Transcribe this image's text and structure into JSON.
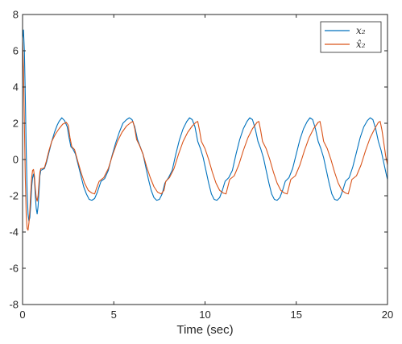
{
  "chart_data": {
    "type": "line",
    "title": "",
    "xlabel": "Time (sec)",
    "ylabel": "",
    "xlim": [
      0,
      20
    ],
    "ylim": [
      -8,
      8
    ],
    "x_ticks": [
      0,
      5,
      10,
      15,
      20
    ],
    "y_ticks": [
      -8,
      -6,
      -4,
      -2,
      0,
      2,
      4,
      6,
      8
    ],
    "x_tick_labels": [
      "0",
      "5",
      "10",
      "15",
      "20"
    ],
    "y_tick_labels": [
      "-8",
      "-6",
      "-4",
      "-2",
      "0",
      "2",
      "4",
      "6",
      "8"
    ],
    "grid": false,
    "legend_position": "top-right",
    "series": [
      {
        "name": "x₂",
        "color": "#0072BD",
        "points": [
          [
            0.0,
            6.7
          ],
          [
            0.05,
            7.15
          ],
          [
            0.1,
            6.0
          ],
          [
            0.15,
            3.5
          ],
          [
            0.2,
            0.5
          ],
          [
            0.25,
            -1.8
          ],
          [
            0.3,
            -3.0
          ],
          [
            0.35,
            -3.4
          ],
          [
            0.4,
            -3.2
          ],
          [
            0.45,
            -2.5
          ],
          [
            0.5,
            -1.5
          ],
          [
            0.55,
            -1.0
          ],
          [
            0.6,
            -0.8
          ],
          [
            0.65,
            -1.1
          ],
          [
            0.7,
            -2.0
          ],
          [
            0.75,
            -2.7
          ],
          [
            0.8,
            -3.0
          ],
          [
            0.85,
            -2.6
          ],
          [
            0.9,
            -1.8
          ],
          [
            0.95,
            -0.9
          ],
          [
            1.0,
            -0.6
          ],
          [
            1.1,
            -0.55
          ],
          [
            1.2,
            -0.5
          ],
          [
            1.3,
            -0.2
          ],
          [
            1.4,
            0.2
          ],
          [
            1.5,
            0.6
          ],
          [
            1.6,
            1.0
          ],
          [
            1.75,
            1.5
          ],
          [
            1.9,
            1.9
          ],
          [
            2.0,
            2.1
          ],
          [
            2.15,
            2.3
          ],
          [
            2.3,
            2.15
          ],
          [
            2.45,
            1.8
          ],
          [
            2.55,
            1.2
          ],
          [
            2.65,
            0.7
          ],
          [
            2.75,
            0.6
          ],
          [
            2.9,
            0.3
          ],
          [
            3.05,
            -0.3
          ],
          [
            3.2,
            -0.9
          ],
          [
            3.35,
            -1.5
          ],
          [
            3.5,
            -1.9
          ],
          [
            3.65,
            -2.2
          ],
          [
            3.8,
            -2.25
          ],
          [
            3.95,
            -2.15
          ],
          [
            4.1,
            -1.8
          ],
          [
            4.3,
            -1.2
          ],
          [
            4.5,
            -1.05
          ],
          [
            4.7,
            -0.6
          ],
          [
            4.9,
            0.2
          ],
          [
            5.1,
            0.9
          ],
          [
            5.3,
            1.5
          ],
          [
            5.5,
            2.0
          ],
          [
            5.7,
            2.2
          ],
          [
            5.85,
            2.3
          ],
          [
            6.0,
            2.2
          ],
          [
            6.15,
            1.8
          ],
          [
            6.3,
            1.1
          ],
          [
            6.45,
            0.7
          ],
          [
            6.6,
            0.3
          ],
          [
            6.75,
            -0.4
          ],
          [
            6.9,
            -1.1
          ],
          [
            7.05,
            -1.7
          ],
          [
            7.2,
            -2.1
          ],
          [
            7.35,
            -2.25
          ],
          [
            7.5,
            -2.2
          ],
          [
            7.65,
            -1.9
          ],
          [
            7.8,
            -1.3
          ],
          [
            8.0,
            -1.0
          ],
          [
            8.2,
            -0.6
          ],
          [
            8.4,
            0.3
          ],
          [
            8.6,
            1.1
          ],
          [
            8.8,
            1.7
          ],
          [
            9.0,
            2.1
          ],
          [
            9.15,
            2.3
          ],
          [
            9.3,
            2.2
          ],
          [
            9.45,
            1.8
          ],
          [
            9.6,
            1.0
          ],
          [
            9.75,
            0.6
          ],
          [
            9.9,
            0.1
          ],
          [
            10.05,
            -0.6
          ],
          [
            10.2,
            -1.3
          ],
          [
            10.35,
            -1.9
          ],
          [
            10.5,
            -2.2
          ],
          [
            10.65,
            -2.25
          ],
          [
            10.8,
            -2.1
          ],
          [
            10.95,
            -1.7
          ],
          [
            11.1,
            -1.2
          ],
          [
            11.3,
            -1.0
          ],
          [
            11.5,
            -0.6
          ],
          [
            11.7,
            0.3
          ],
          [
            11.9,
            1.1
          ],
          [
            12.1,
            1.7
          ],
          [
            12.3,
            2.1
          ],
          [
            12.45,
            2.3
          ],
          [
            12.6,
            2.2
          ],
          [
            12.75,
            1.7
          ],
          [
            12.9,
            1.0
          ],
          [
            13.05,
            0.6
          ],
          [
            13.2,
            0.1
          ],
          [
            13.35,
            -0.6
          ],
          [
            13.5,
            -1.3
          ],
          [
            13.65,
            -1.9
          ],
          [
            13.8,
            -2.2
          ],
          [
            13.95,
            -2.25
          ],
          [
            14.1,
            -2.1
          ],
          [
            14.25,
            -1.7
          ],
          [
            14.4,
            -1.2
          ],
          [
            14.6,
            -1.0
          ],
          [
            14.8,
            -0.5
          ],
          [
            15.0,
            0.3
          ],
          [
            15.2,
            1.1
          ],
          [
            15.4,
            1.7
          ],
          [
            15.6,
            2.1
          ],
          [
            15.75,
            2.3
          ],
          [
            15.9,
            2.2
          ],
          [
            16.05,
            1.7
          ],
          [
            16.2,
            1.0
          ],
          [
            16.35,
            0.6
          ],
          [
            16.5,
            0.1
          ],
          [
            16.65,
            -0.6
          ],
          [
            16.8,
            -1.3
          ],
          [
            16.95,
            -1.9
          ],
          [
            17.1,
            -2.2
          ],
          [
            17.25,
            -2.25
          ],
          [
            17.4,
            -2.1
          ],
          [
            17.55,
            -1.7
          ],
          [
            17.7,
            -1.2
          ],
          [
            17.9,
            -1.0
          ],
          [
            18.1,
            -0.4
          ],
          [
            18.3,
            0.4
          ],
          [
            18.5,
            1.2
          ],
          [
            18.7,
            1.8
          ],
          [
            18.9,
            2.15
          ],
          [
            19.05,
            2.3
          ],
          [
            19.2,
            2.2
          ],
          [
            19.35,
            1.7
          ],
          [
            19.5,
            1.0
          ],
          [
            19.65,
            0.5
          ],
          [
            19.8,
            -0.2
          ],
          [
            19.95,
            -0.9
          ],
          [
            20.0,
            -1.1
          ]
        ]
      },
      {
        "name": "x̂₂",
        "color": "#D95319",
        "points": [
          [
            0.0,
            6.5
          ],
          [
            0.05,
            5.0
          ],
          [
            0.1,
            2.0
          ],
          [
            0.15,
            -1.0
          ],
          [
            0.2,
            -3.0
          ],
          [
            0.25,
            -3.8
          ],
          [
            0.3,
            -3.9
          ],
          [
            0.35,
            -3.5
          ],
          [
            0.4,
            -2.8
          ],
          [
            0.45,
            -1.8
          ],
          [
            0.5,
            -1.0
          ],
          [
            0.55,
            -0.6
          ],
          [
            0.6,
            -0.55
          ],
          [
            0.65,
            -0.9
          ],
          [
            0.7,
            -1.6
          ],
          [
            0.75,
            -2.1
          ],
          [
            0.8,
            -2.3
          ],
          [
            0.85,
            -2.0
          ],
          [
            0.9,
            -1.3
          ],
          [
            0.95,
            -0.7
          ],
          [
            1.0,
            -0.5
          ],
          [
            1.1,
            -0.5
          ],
          [
            1.2,
            -0.45
          ],
          [
            1.3,
            -0.1
          ],
          [
            1.45,
            0.5
          ],
          [
            1.6,
            1.0
          ],
          [
            1.8,
            1.4
          ],
          [
            2.0,
            1.7
          ],
          [
            2.2,
            1.95
          ],
          [
            2.4,
            2.05
          ],
          [
            2.5,
            1.9
          ],
          [
            2.6,
            1.2
          ],
          [
            2.7,
            0.7
          ],
          [
            2.85,
            0.55
          ],
          [
            3.0,
            0.0
          ],
          [
            3.2,
            -0.7
          ],
          [
            3.4,
            -1.3
          ],
          [
            3.6,
            -1.7
          ],
          [
            3.8,
            -1.85
          ],
          [
            3.95,
            -1.9
          ],
          [
            4.05,
            -1.6
          ],
          [
            4.2,
            -1.2
          ],
          [
            4.45,
            -1.0
          ],
          [
            4.7,
            -0.5
          ],
          [
            4.95,
            0.3
          ],
          [
            5.2,
            1.0
          ],
          [
            5.45,
            1.5
          ],
          [
            5.7,
            1.85
          ],
          [
            5.95,
            2.05
          ],
          [
            6.05,
            2.1
          ],
          [
            6.15,
            1.7
          ],
          [
            6.25,
            1.1
          ],
          [
            6.4,
            0.8
          ],
          [
            6.6,
            0.3
          ],
          [
            6.8,
            -0.4
          ],
          [
            7.0,
            -1.0
          ],
          [
            7.2,
            -1.5
          ],
          [
            7.4,
            -1.8
          ],
          [
            7.6,
            -1.9
          ],
          [
            7.75,
            -1.7
          ],
          [
            7.85,
            -1.2
          ],
          [
            8.05,
            -1.0
          ],
          [
            8.3,
            -0.5
          ],
          [
            8.55,
            0.3
          ],
          [
            8.8,
            1.0
          ],
          [
            9.05,
            1.5
          ],
          [
            9.3,
            1.85
          ],
          [
            9.5,
            2.05
          ],
          [
            9.6,
            2.1
          ],
          [
            9.7,
            1.6
          ],
          [
            9.8,
            1.0
          ],
          [
            10.0,
            0.6
          ],
          [
            10.2,
            0.0
          ],
          [
            10.4,
            -0.7
          ],
          [
            10.6,
            -1.3
          ],
          [
            10.8,
            -1.7
          ],
          [
            11.0,
            -1.85
          ],
          [
            11.15,
            -1.9
          ],
          [
            11.25,
            -1.5
          ],
          [
            11.35,
            -1.1
          ],
          [
            11.6,
            -0.9
          ],
          [
            11.85,
            -0.3
          ],
          [
            12.1,
            0.5
          ],
          [
            12.35,
            1.2
          ],
          [
            12.6,
            1.7
          ],
          [
            12.85,
            2.05
          ],
          [
            12.95,
            2.1
          ],
          [
            13.05,
            1.6
          ],
          [
            13.15,
            1.0
          ],
          [
            13.35,
            0.6
          ],
          [
            13.55,
            0.0
          ],
          [
            13.75,
            -0.7
          ],
          [
            13.95,
            -1.3
          ],
          [
            14.15,
            -1.7
          ],
          [
            14.35,
            -1.85
          ],
          [
            14.5,
            -1.9
          ],
          [
            14.6,
            -1.5
          ],
          [
            14.7,
            -1.1
          ],
          [
            14.95,
            -0.9
          ],
          [
            15.2,
            -0.3
          ],
          [
            15.45,
            0.5
          ],
          [
            15.7,
            1.2
          ],
          [
            15.95,
            1.7
          ],
          [
            16.2,
            2.05
          ],
          [
            16.3,
            2.1
          ],
          [
            16.4,
            1.6
          ],
          [
            16.5,
            1.0
          ],
          [
            16.7,
            0.6
          ],
          [
            16.9,
            0.0
          ],
          [
            17.1,
            -0.7
          ],
          [
            17.3,
            -1.3
          ],
          [
            17.5,
            -1.7
          ],
          [
            17.7,
            -1.85
          ],
          [
            17.85,
            -1.9
          ],
          [
            17.95,
            -1.5
          ],
          [
            18.05,
            -1.1
          ],
          [
            18.3,
            -0.9
          ],
          [
            18.55,
            -0.3
          ],
          [
            18.8,
            0.5
          ],
          [
            19.05,
            1.2
          ],
          [
            19.3,
            1.7
          ],
          [
            19.5,
            2.05
          ],
          [
            19.6,
            2.1
          ],
          [
            19.7,
            1.6
          ],
          [
            19.8,
            0.9
          ],
          [
            19.9,
            0.2
          ],
          [
            20.0,
            -0.3
          ]
        ]
      }
    ]
  }
}
